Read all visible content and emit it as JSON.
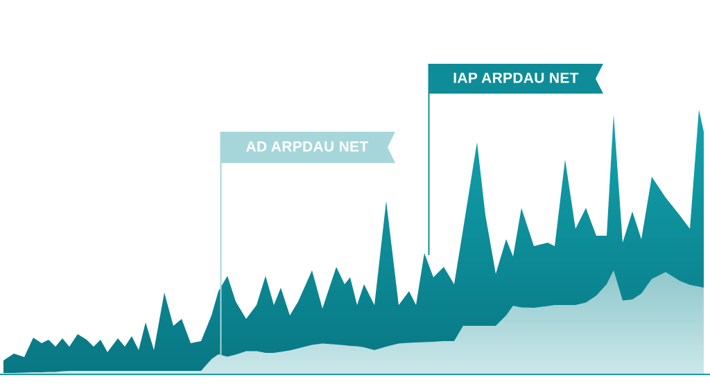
{
  "chart_data": {
    "type": "stacked-area",
    "x": [
      5,
      20,
      35,
      48,
      60,
      70,
      80,
      90,
      100,
      112,
      125,
      135,
      145,
      155,
      170,
      180,
      190,
      200,
      210,
      222,
      237,
      250,
      262,
      275,
      290,
      305,
      315,
      328,
      340,
      355,
      370,
      383,
      395,
      405,
      418,
      430,
      450,
      465,
      485,
      497,
      505,
      515,
      525,
      540,
      557,
      575,
      590,
      600,
      612,
      625,
      640,
      655,
      668,
      688,
      700,
      715,
      730,
      740,
      752,
      770,
      790,
      800,
      815,
      830,
      845,
      860,
      875,
      885,
      898,
      912,
      925,
      940,
      960,
      980,
      995,
      1008,
      1015
    ],
    "xlim": [
      0,
      1024
    ],
    "ylim": [
      0,
      100
    ],
    "series": [
      {
        "name": "AD ARPDAU NET",
        "color": "#a6d6da",
        "values": [
          0.4,
          0.4,
          0.5,
          0.6,
          0.6,
          0.7,
          0.7,
          0.9,
          1,
          1,
          1,
          1,
          1,
          1,
          1,
          1,
          1,
          1,
          1,
          1,
          1,
          1,
          1,
          1,
          1,
          4.4,
          5.8,
          5.1,
          5.7,
          6.7,
          6.7,
          6.2,
          6.2,
          6.5,
          6.9,
          7.5,
          8.5,
          8.9,
          8.6,
          8.4,
          8.2,
          8.1,
          7.8,
          7,
          8,
          8.9,
          9.1,
          9.2,
          9.3,
          9.4,
          9.6,
          9.6,
          14,
          14,
          14,
          14,
          17,
          19.8,
          19.3,
          19.2,
          19.7,
          20,
          20,
          20,
          20.7,
          22.7,
          26,
          30,
          21.3,
          21.6,
          23.3,
          27.5,
          29.5,
          27,
          25.8,
          25.3,
          25
        ]
      },
      {
        "name": "IAP ARPDAU NET",
        "color": "#0e8d99",
        "values": [
          3.6,
          5.6,
          4.5,
          10,
          8.4,
          9.3,
          7.3,
          9.5,
          7,
          10.6,
          9,
          7,
          9,
          5.4,
          9.4,
          7,
          10,
          6,
          14,
          6,
          22.6,
          13,
          15,
          8,
          8.6,
          12.6,
          18.2,
          23.3,
          15.3,
          9.3,
          13.3,
          22.2,
          13.8,
          18.5,
          10.1,
          13.5,
          21.5,
          10.1,
          22.4,
          17.6,
          19.8,
          11.9,
          18.2,
          13,
          42,
          11.1,
          14.9,
          10.8,
          25.7,
          18.6,
          21.4,
          16.4,
          28,
          53,
          32,
          15,
          22,
          14.2,
          28.7,
          17.8,
          18.3,
          17,
          42,
          22,
          27.3,
          17.3,
          14,
          45,
          16.7,
          25.4,
          15.7,
          29.5,
          21.5,
          19,
          16.2,
          51.1,
          45
        ]
      }
    ]
  }
}
